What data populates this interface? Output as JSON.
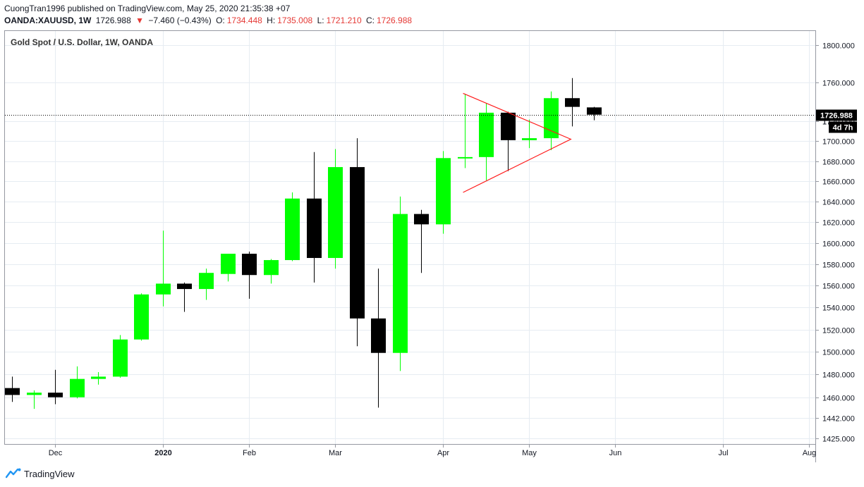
{
  "header": {
    "publisher_line": "CuongTran1996 published on TradingView.com, May 25, 2020 21:35:38 +07",
    "symbol": "OANDA:XAUUSD, 1W",
    "last": "1726.988",
    "change_arrow": "▼",
    "change": "−7.460 (−0.43%)",
    "o_label": "O:",
    "o_value": "1734.448",
    "h_label": "H:",
    "h_value": "1735.008",
    "l_label": "L:",
    "l_value": "1721.210",
    "c_label": "C:",
    "c_value": "1726.988"
  },
  "legend": "Gold Spot / U.S. Dollar, 1W, OANDA",
  "footer": {
    "brand": "TradingView"
  },
  "colors": {
    "up": "#00ff00",
    "down": "#000000",
    "trendline": "#ff1a1a",
    "grid": "#e6ecf2",
    "text_red": "#e53935"
  },
  "chart_data": {
    "type": "candlestick",
    "title": "Gold Spot / U.S. Dollar, 1W, OANDA",
    "y_scale": "log",
    "ylim": [
      1420,
      1815
    ],
    "y_ticks": [
      1800,
      1760,
      1720,
      1700,
      1680,
      1660,
      1640,
      1620,
      1600,
      1580,
      1560,
      1540,
      1520,
      1500,
      1480,
      1460,
      1442,
      1425
    ],
    "y_tick_labels": [
      "1800.000",
      "1760.000",
      "1720.000",
      "1700.000",
      "1680.000",
      "1660.000",
      "1640.000",
      "1620.000",
      "1600.000",
      "1580.000",
      "1560.000",
      "1540.000",
      "1520.000",
      "1500.000",
      "1480.000",
      "1460.000",
      "1442.000",
      "1425.000"
    ],
    "x_ticks": [
      {
        "label": "Dec",
        "index": 2,
        "bold": false
      },
      {
        "label": "2020",
        "index": 7,
        "bold": true
      },
      {
        "label": "Feb",
        "index": 11,
        "bold": false
      },
      {
        "label": "Mar",
        "index": 15,
        "bold": false
      },
      {
        "label": "Apr",
        "index": 20,
        "bold": false
      },
      {
        "label": "May",
        "index": 24,
        "bold": false
      },
      {
        "label": "Jun",
        "index": 28,
        "bold": false
      },
      {
        "label": "Jul",
        "index": 33,
        "bold": false
      },
      {
        "label": "Aug",
        "index": 37,
        "bold": false
      }
    ],
    "candles": [
      {
        "date": "2019-11-17",
        "o": 1468,
        "h": 1478,
        "l": 1456,
        "c": 1462
      },
      {
        "date": "2019-11-24",
        "o": 1462,
        "h": 1466,
        "l": 1450,
        "c": 1464
      },
      {
        "date": "2019-12-01",
        "o": 1464,
        "h": 1484,
        "l": 1454,
        "c": 1460
      },
      {
        "date": "2019-12-08",
        "o": 1460,
        "h": 1487,
        "l": 1459,
        "c": 1476
      },
      {
        "date": "2019-12-15",
        "o": 1476,
        "h": 1482,
        "l": 1471,
        "c": 1478
      },
      {
        "date": "2019-12-22",
        "o": 1478,
        "h": 1515,
        "l": 1477,
        "c": 1511
      },
      {
        "date": "2019-12-29",
        "o": 1511,
        "h": 1553,
        "l": 1510,
        "c": 1552
      },
      {
        "date": "2020-01-05",
        "o": 1552,
        "h": 1612,
        "l": 1541,
        "c": 1562
      },
      {
        "date": "2020-01-12",
        "o": 1562,
        "h": 1563,
        "l": 1536,
        "c": 1557
      },
      {
        "date": "2020-01-19",
        "o": 1557,
        "h": 1576,
        "l": 1547,
        "c": 1572
      },
      {
        "date": "2020-01-26",
        "o": 1571,
        "h": 1590,
        "l": 1564,
        "c": 1590
      },
      {
        "date": "2020-02-02",
        "o": 1590,
        "h": 1592,
        "l": 1548,
        "c": 1570
      },
      {
        "date": "2020-02-09",
        "o": 1570,
        "h": 1585,
        "l": 1562,
        "c": 1584
      },
      {
        "date": "2020-02-16",
        "o": 1584,
        "h": 1649,
        "l": 1583,
        "c": 1643
      },
      {
        "date": "2020-02-23",
        "o": 1643,
        "h": 1689,
        "l": 1563,
        "c": 1586
      },
      {
        "date": "2020-03-01",
        "o": 1586,
        "h": 1692,
        "l": 1576,
        "c": 1674
      },
      {
        "date": "2020-03-08",
        "o": 1674,
        "h": 1703,
        "l": 1505,
        "c": 1530
      },
      {
        "date": "2020-03-15",
        "o": 1530,
        "h": 1576,
        "l": 1451,
        "c": 1499
      },
      {
        "date": "2020-03-22",
        "o": 1499,
        "h": 1645,
        "l": 1483,
        "c": 1628
      },
      {
        "date": "2020-03-29",
        "o": 1628,
        "h": 1632,
        "l": 1572,
        "c": 1618
      },
      {
        "date": "2020-04-05",
        "o": 1618,
        "h": 1690,
        "l": 1609,
        "c": 1683
      },
      {
        "date": "2020-04-12",
        "o": 1683,
        "h": 1748,
        "l": 1673,
        "c": 1684
      },
      {
        "date": "2020-04-19",
        "o": 1684,
        "h": 1739,
        "l": 1661,
        "c": 1729
      },
      {
        "date": "2020-04-26",
        "o": 1729,
        "h": 1730,
        "l": 1670,
        "c": 1701
      },
      {
        "date": "2020-05-03",
        "o": 1701,
        "h": 1722,
        "l": 1693,
        "c": 1703
      },
      {
        "date": "2020-05-10",
        "o": 1703,
        "h": 1751,
        "l": 1691,
        "c": 1744
      },
      {
        "date": "2020-05-17",
        "o": 1744,
        "h": 1765,
        "l": 1715,
        "c": 1735
      },
      {
        "date": "2020-05-24",
        "o": 1734.448,
        "h": 1735.008,
        "l": 1721.21,
        "c": 1726.988
      }
    ],
    "price_line": 1726.988,
    "price_label": "1726.988",
    "countdown_label": "4d 7h",
    "hidden_tick_fragment": "17",
    "annotations": [
      {
        "type": "triangle",
        "points": [
          {
            "index": 21,
            "price": 1749
          },
          {
            "index": 26,
            "price": 1702
          },
          {
            "index": 21,
            "price": 1649
          }
        ]
      }
    ]
  }
}
